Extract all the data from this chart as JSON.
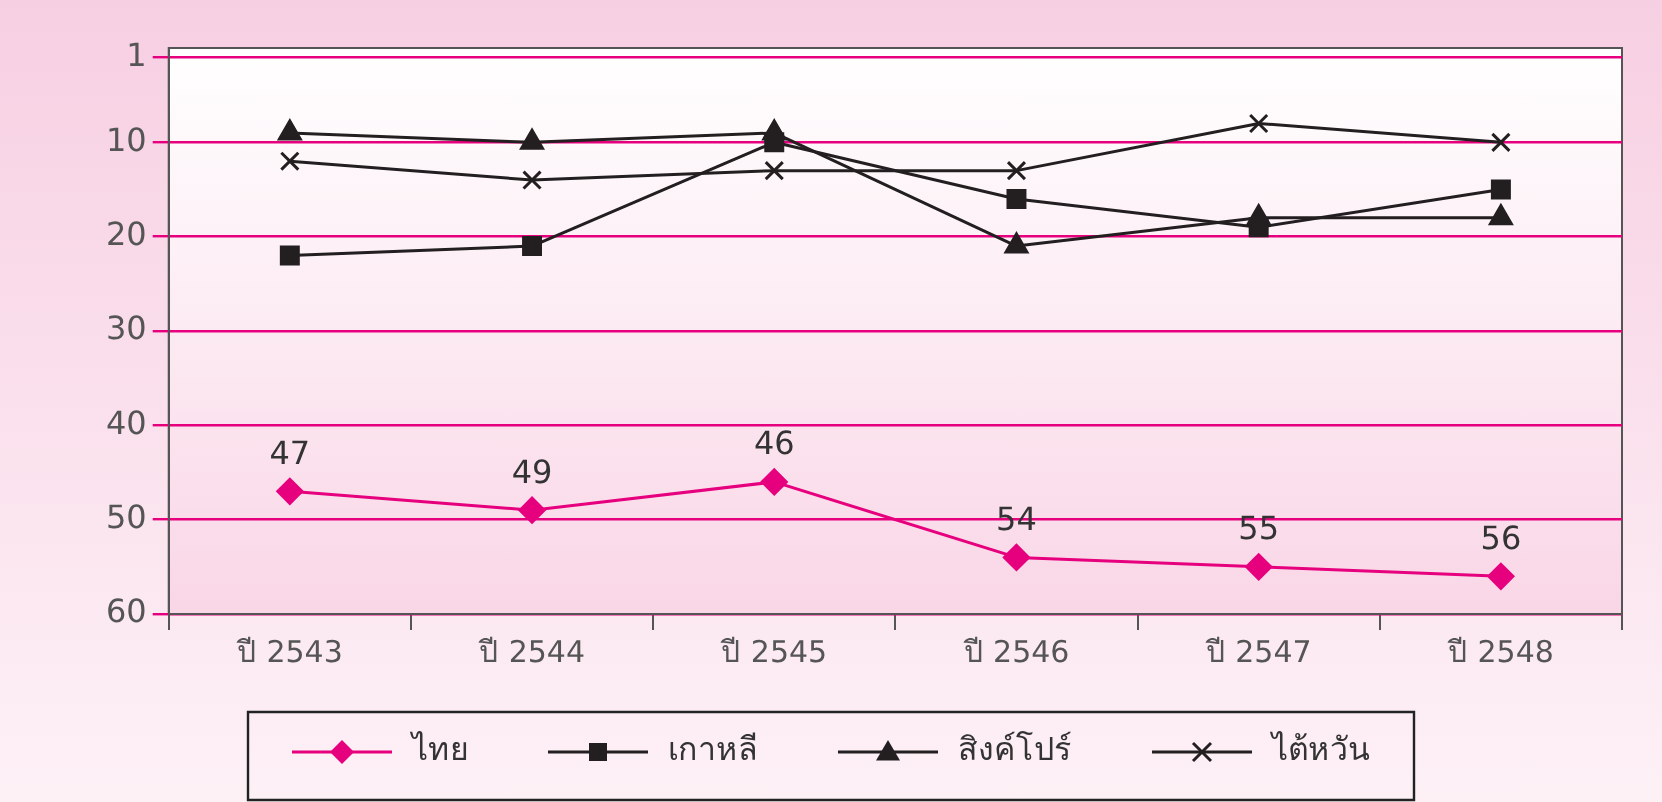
{
  "chart_data": {
    "type": "line",
    "categories": [
      "ปี 2543",
      "ปี 2544",
      "ปี 2545",
      "ปี 2546",
      "ปี 2547",
      "ปี 2548"
    ],
    "ylim": [
      60,
      0
    ],
    "yticks": [
      1,
      10,
      20,
      30,
      40,
      50,
      60
    ],
    "grid": "y",
    "legend": "bottom",
    "series": [
      {
        "name": "ไทย",
        "color": "#e6007e",
        "marker": "diamond",
        "values": [
          47,
          49,
          46,
          54,
          55,
          56
        ],
        "value_labels": [
          "47",
          "49",
          "46",
          "54",
          "55",
          "56"
        ]
      },
      {
        "name": "เกาหลี",
        "color": "#231f20",
        "marker": "square",
        "values": [
          22,
          21,
          10,
          16,
          19,
          15
        ]
      },
      {
        "name": "สิงค์โปร์",
        "color": "#231f20",
        "marker": "triangle",
        "values": [
          9,
          10,
          9,
          21,
          18,
          18
        ]
      },
      {
        "name": "ไต้หวัน",
        "color": "#231f20",
        "marker": "cross",
        "values": [
          12,
          14,
          13,
          13,
          8,
          10
        ]
      }
    ]
  }
}
